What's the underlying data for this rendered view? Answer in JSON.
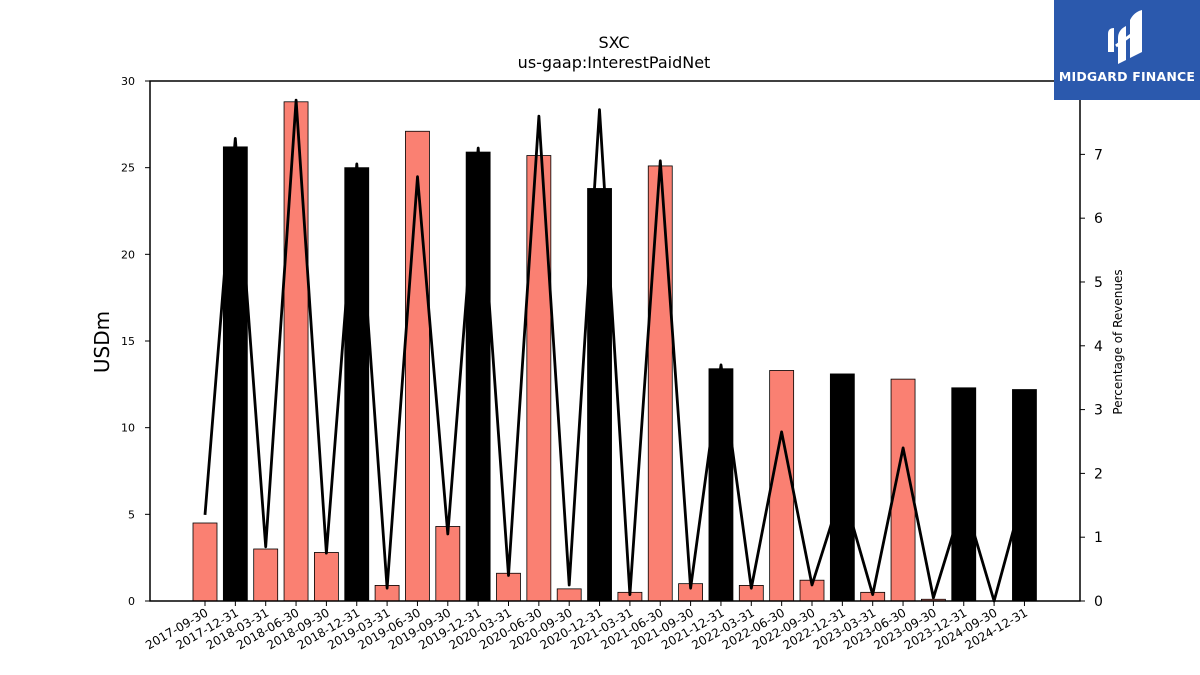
{
  "chart_data": {
    "type": "bar",
    "title": "SXC",
    "subtitle": "us-gaap:InterestPaidNet",
    "ylabel": "USDm",
    "y2label": "Percentage of Revenues",
    "ylim": [
      0,
      30
    ],
    "y2lim": [
      0,
      8.15
    ],
    "yticks": [
      "0",
      "5",
      "10",
      "15",
      "20",
      "25",
      "30"
    ],
    "y2ticks": [
      "0",
      "1",
      "2",
      "3",
      "4",
      "5",
      "6",
      "7"
    ],
    "categories": [
      "2017-09-30",
      "2017-12-31",
      "2018-03-31",
      "2018-06-30",
      "2018-09-30",
      "2018-12-31",
      "2019-03-31",
      "2019-06-30",
      "2019-09-30",
      "2019-12-31",
      "2020-03-31",
      "2020-06-30",
      "2020-09-30",
      "2020-12-31",
      "2021-03-31",
      "2021-06-30",
      "2021-09-30",
      "2021-12-31",
      "2022-03-31",
      "2022-06-30",
      "2022-09-30",
      "2022-12-31",
      "2023-03-31",
      "2023-06-30",
      "2023-09-30",
      "2023-12-31",
      "2024-09-30",
      "2024-12-31"
    ],
    "bar_series": {
      "values": [
        4.5,
        26.2,
        3.0,
        28.8,
        2.8,
        25.0,
        0.9,
        27.1,
        4.3,
        25.9,
        1.6,
        25.7,
        0.7,
        23.8,
        0.5,
        25.1,
        1.0,
        13.4,
        0.9,
        13.3,
        1.2,
        13.1,
        0.5,
        12.8,
        0.1,
        12.3,
        null,
        12.2
      ],
      "colors": [
        "#fa8072",
        "#000000",
        "#fa8072",
        "#fa8072",
        "#fa8072",
        "#000000",
        "#fa8072",
        "#fa8072",
        "#fa8072",
        "#000000",
        "#fa8072",
        "#fa8072",
        "#fa8072",
        "#000000",
        "#fa8072",
        "#fa8072",
        "#fa8072",
        "#000000",
        "#fa8072",
        "#fa8072",
        "#fa8072",
        "#000000",
        "#fa8072",
        "#fa8072",
        "#fa8072",
        "#000000",
        "#fa8072",
        "#000000"
      ]
    },
    "line_series": {
      "axis": "right",
      "color": "#000000",
      "values": [
        1.35,
        7.25,
        0.85,
        7.85,
        0.75,
        6.85,
        0.2,
        6.65,
        1.05,
        7.1,
        0.4,
        7.6,
        0.25,
        7.7,
        0.1,
        6.9,
        0.2,
        3.7,
        0.2,
        2.65,
        0.25,
        1.75,
        0.1,
        2.4,
        0.05,
        1.6,
        0.0,
        1.75
      ]
    },
    "colors": {
      "salmon": "#fa8072",
      "black": "#000000"
    }
  },
  "logo": {
    "text": "MIDGARD FINANCE",
    "color": "#2b59ad"
  }
}
